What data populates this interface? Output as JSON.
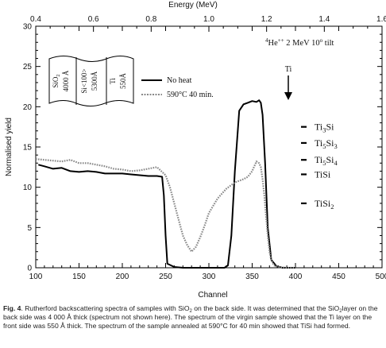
{
  "chart_data": {
    "type": "line",
    "xlabel": "Channel",
    "ylabel": "Normalised yield",
    "top_axis_label": "Energy (MeV)",
    "xlim": [
      100,
      500
    ],
    "ylim": [
      0,
      30
    ],
    "x2lim": [
      0.4,
      1.6
    ],
    "xticks": [
      100,
      150,
      200,
      250,
      300,
      350,
      400,
      450,
      500
    ],
    "yticks": [
      0,
      5,
      10,
      15,
      20,
      25,
      30
    ],
    "x2ticks": [
      0.4,
      0.6,
      0.8,
      1.0,
      1.2,
      1.4,
      1.6
    ],
    "grid": false,
    "legend_position": "top-center",
    "beam_label": "2 MeV 10",
    "beam_label_tail": " tilt",
    "beam_ion": "He",
    "beam_mass": "4",
    "beam_charge": "++",
    "beam_degree": "o",
    "ti_label": "Ti",
    "series": [
      {
        "name": "No heat",
        "color": "#000000",
        "style": "solid",
        "x": [
          103,
          110,
          120,
          130,
          140,
          150,
          160,
          170,
          180,
          190,
          200,
          210,
          220,
          230,
          240,
          246,
          248,
          250,
          252,
          260,
          270,
          280,
          290,
          300,
          310,
          318,
          322,
          326,
          330,
          335,
          340,
          345,
          350,
          355,
          358,
          360,
          362,
          365,
          368,
          372,
          378,
          385,
          400
        ],
        "y": [
          12.8,
          12.6,
          12.3,
          12.4,
          12.0,
          11.9,
          12.0,
          11.9,
          11.7,
          11.7,
          11.7,
          11.6,
          11.5,
          11.4,
          11.4,
          11.3,
          9.0,
          4.0,
          0.5,
          0.1,
          0.0,
          0.0,
          0.0,
          0.0,
          0.0,
          0.0,
          0.3,
          4.0,
          12.0,
          19.5,
          20.3,
          20.5,
          20.7,
          20.6,
          20.8,
          20.5,
          19.0,
          13.0,
          5.0,
          1.0,
          0.2,
          0.0,
          0.0
        ]
      },
      {
        "name": "590°C 40 min.",
        "color": "#888888",
        "style": "dotted",
        "x": [
          100,
          110,
          120,
          130,
          140,
          150,
          160,
          170,
          180,
          190,
          200,
          210,
          220,
          230,
          240,
          250,
          255,
          260,
          265,
          270,
          275,
          280,
          285,
          290,
          295,
          300,
          310,
          320,
          330,
          340,
          345,
          350,
          355,
          358,
          360,
          362,
          364,
          366,
          368,
          370,
          372,
          375,
          380,
          390,
          400
        ],
        "y": [
          13.5,
          13.4,
          13.3,
          13.2,
          13.4,
          13.0,
          13.0,
          12.8,
          12.6,
          12.3,
          12.2,
          12.0,
          12.1,
          12.3,
          12.5,
          11.5,
          10.0,
          8.0,
          6.0,
          4.0,
          2.8,
          2.0,
          2.6,
          3.8,
          5.2,
          6.8,
          8.6,
          9.8,
          10.6,
          11.0,
          11.3,
          12.0,
          13.2,
          13.0,
          12.5,
          11.0,
          9.0,
          6.5,
          4.0,
          2.0,
          1.0,
          0.3,
          0.1,
          0.0,
          0.0
        ]
      }
    ],
    "markers": [
      {
        "base": "Ti",
        "n1": "3",
        "base2": "Si",
        "n2": "",
        "y": 17.5
      },
      {
        "base": "Ti",
        "n1": "5",
        "base2": "Si",
        "n2": "3",
        "y": 15.5
      },
      {
        "base": "Ti",
        "n1": "5",
        "base2": "Si",
        "n2": "4",
        "y": 13.4
      },
      {
        "base": "Ti",
        "n1": "",
        "base2": "Si",
        "n2": "",
        "y": 11.6
      },
      {
        "base": "Ti",
        "n1": "",
        "base2": "Si",
        "n2": "2",
        "y": 8.0
      }
    ],
    "layer_stack": [
      {
        "lines": [
          "SiO",
          "4000 Å"
        ],
        "sub": "2"
      },
      {
        "lines": [
          "Si<100>",
          "5300Å"
        ],
        "sub": ""
      },
      {
        "lines": [
          "Ti",
          "550Å"
        ],
        "sub": ""
      }
    ]
  },
  "caption": {
    "fig_label": "Fig. 4",
    "p1": ". Rutherford backscattering spectra of samples with SiO",
    "s1": "2",
    "p2": " on the back side. It was determined that the SiO",
    "s2": "2",
    "p3": "layer on the back side was 4 000 Å thick (spectrum not shown here). The spectrum of the virgin sample showed that the Ti layer on the front side was 550 Å thick. The spectrum of the sample annealed at 590°C for 40 min showed that TiSi had formed."
  }
}
